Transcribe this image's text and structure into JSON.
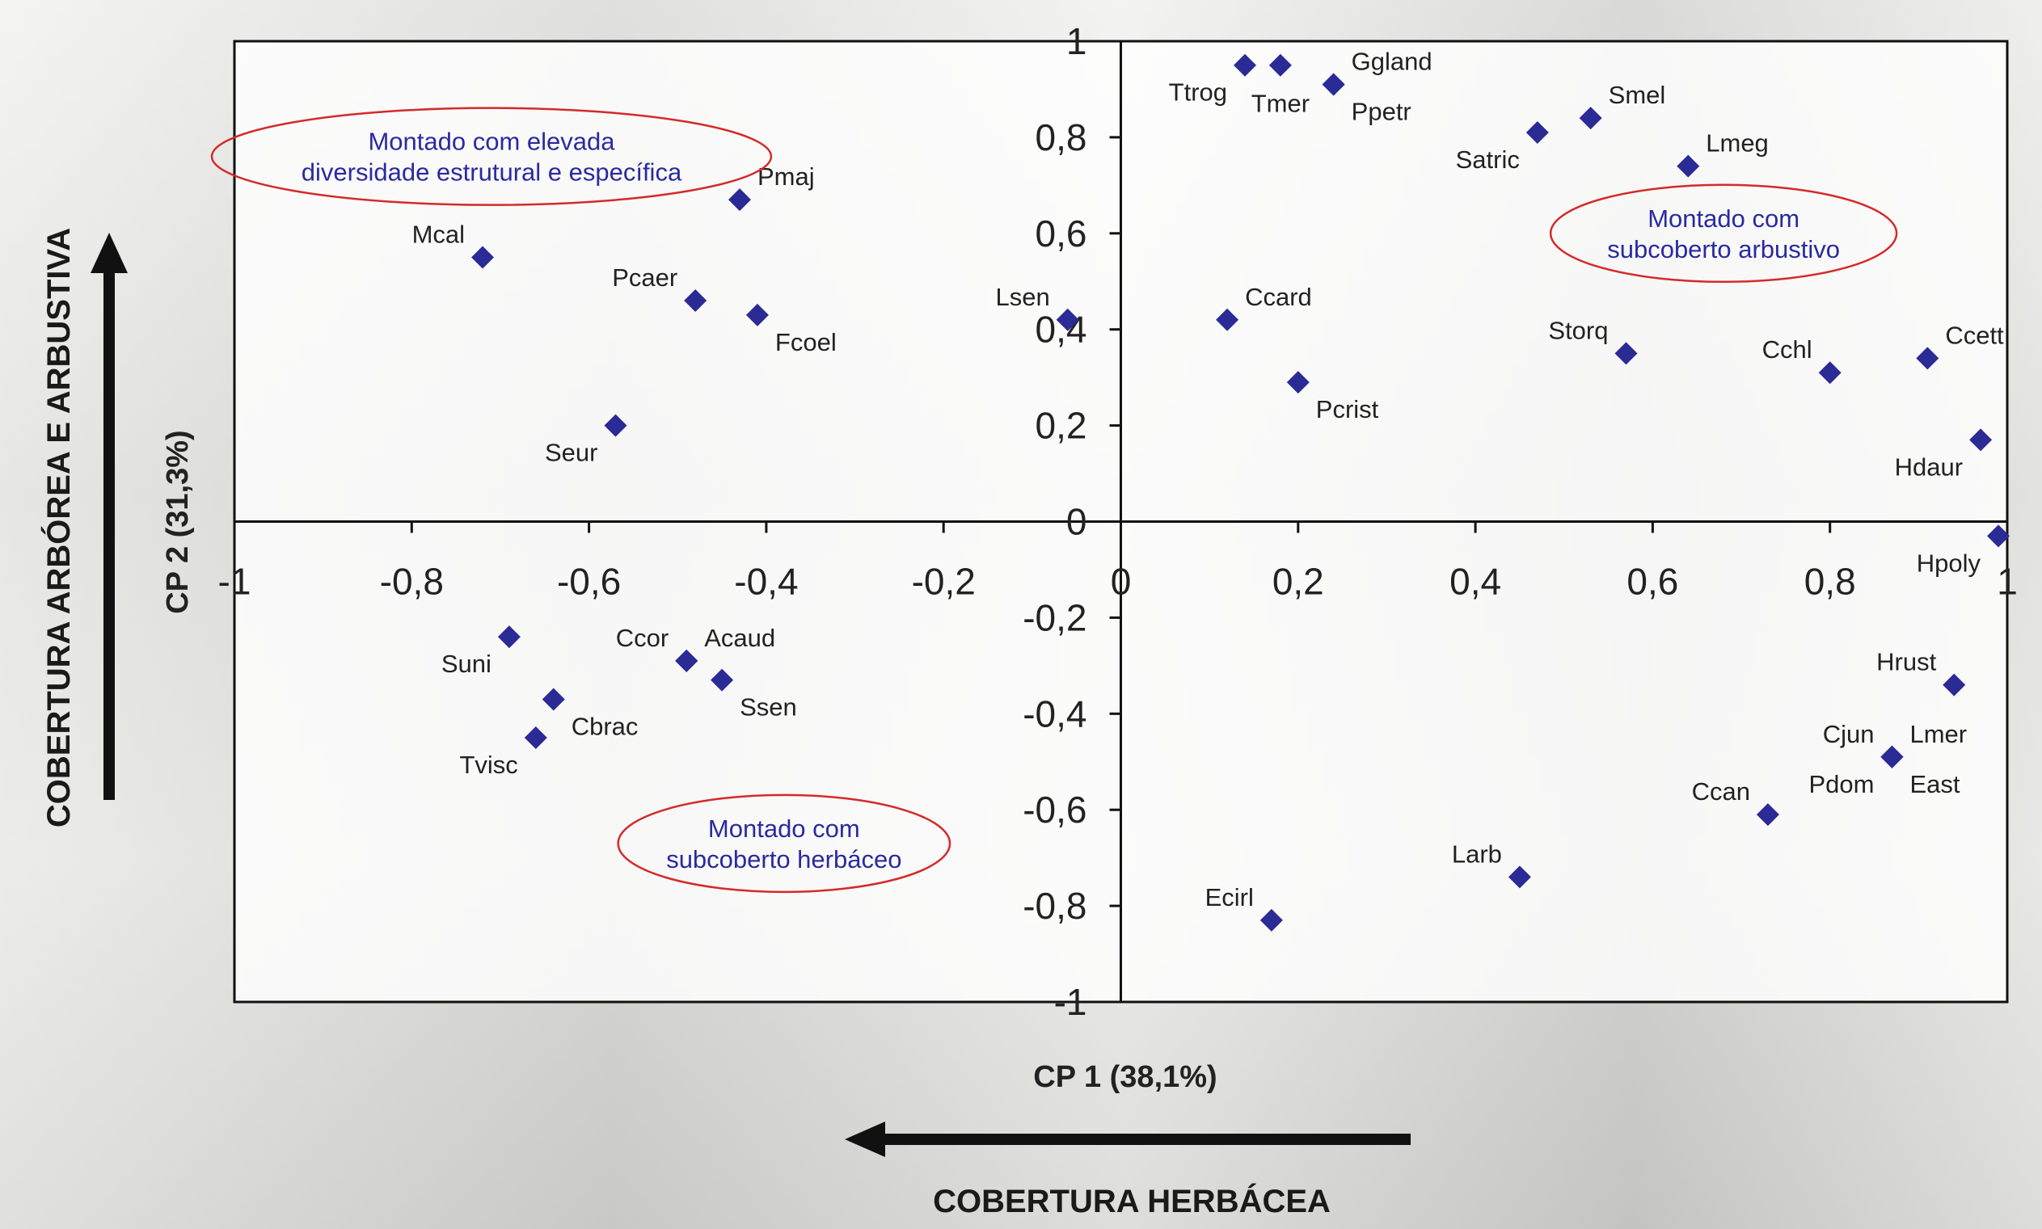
{
  "chart_data": {
    "type": "scatter",
    "xlabel": "CP 1 (38,1%)",
    "ylabel": "CP 2 (31,3%)",
    "xlim": [
      -1,
      1
    ],
    "ylim": [
      -1,
      1
    ],
    "x_ticks": [
      -1,
      -0.8,
      -0.6,
      -0.4,
      -0.2,
      0,
      0.2,
      0.4,
      0.6,
      0.8,
      1
    ],
    "x_tick_labels": [
      "-1",
      "-0,8",
      "-0,6",
      "-0,4",
      "-0,2",
      "0",
      "0,2",
      "0,4",
      "0,6",
      "0,8",
      "1"
    ],
    "y_ticks": [
      -1,
      -0.8,
      -0.6,
      -0.4,
      -0.2,
      0,
      0.2,
      0.4,
      0.6,
      0.8,
      1
    ],
    "y_tick_labels": [
      "-1",
      "-0,8",
      "-0,6",
      "-0,4",
      "-0,2",
      "0",
      "0,2",
      "0,4",
      "0,6",
      "0,8",
      "1"
    ],
    "grid": false,
    "marker_color": "#2b2b96",
    "points": [
      {
        "label": "Ttrog",
        "x": 0.14,
        "y": 0.95,
        "pos": "sw"
      },
      {
        "label": "Tmer",
        "x": 0.18,
        "y": 0.95,
        "pos": "s"
      },
      {
        "label": "Ggland",
        "x": 0.24,
        "y": 0.91,
        "pos": "ne"
      },
      {
        "label": "Ppetr",
        "x": 0.24,
        "y": 0.91,
        "pos": "se"
      },
      {
        "label": "Smel",
        "x": 0.53,
        "y": 0.84,
        "pos": "ne"
      },
      {
        "label": "Satric",
        "x": 0.47,
        "y": 0.81,
        "pos": "sw"
      },
      {
        "label": "Lmeg",
        "x": 0.64,
        "y": 0.74,
        "pos": "ne"
      },
      {
        "label": "Pmaj",
        "x": -0.43,
        "y": 0.67,
        "pos": "ne"
      },
      {
        "label": "Mcal",
        "x": -0.72,
        "y": 0.55,
        "pos": "nw"
      },
      {
        "label": "Pcaer",
        "x": -0.48,
        "y": 0.46,
        "pos": "nw"
      },
      {
        "label": "Fcoel",
        "x": -0.41,
        "y": 0.43,
        "pos": "se"
      },
      {
        "label": "Lsen",
        "x": -0.06,
        "y": 0.42,
        "pos": "nw"
      },
      {
        "label": "Ccard",
        "x": 0.12,
        "y": 0.42,
        "pos": "ne"
      },
      {
        "label": "Storq",
        "x": 0.57,
        "y": 0.35,
        "pos": "nw"
      },
      {
        "label": "Ccett",
        "x": 0.91,
        "y": 0.34,
        "pos": "ne"
      },
      {
        "label": "Cchl",
        "x": 0.8,
        "y": 0.31,
        "pos": "nw"
      },
      {
        "label": "Pcrist",
        "x": 0.2,
        "y": 0.29,
        "pos": "se"
      },
      {
        "label": "Seur",
        "x": -0.57,
        "y": 0.2,
        "pos": "sw"
      },
      {
        "label": "Hdaur",
        "x": 0.97,
        "y": 0.17,
        "pos": "sw"
      },
      {
        "label": "Hpoly",
        "x": 0.99,
        "y": -0.03,
        "pos": "sw"
      },
      {
        "label": "Suni",
        "x": -0.69,
        "y": -0.24,
        "pos": "sw"
      },
      {
        "label": "Ccor",
        "x": -0.49,
        "y": -0.29,
        "pos": "nw"
      },
      {
        "label": "Acaud",
        "x": -0.49,
        "y": -0.29,
        "pos": "ne"
      },
      {
        "label": "Ssen",
        "x": -0.45,
        "y": -0.33,
        "pos": "se"
      },
      {
        "label": "Hrust",
        "x": 0.94,
        "y": -0.34,
        "pos": "nw"
      },
      {
        "label": "Cbrac",
        "x": -0.64,
        "y": -0.37,
        "pos": "se"
      },
      {
        "label": "Tvisc",
        "x": -0.66,
        "y": -0.45,
        "pos": "sw"
      },
      {
        "label": "Cjun",
        "x": 0.87,
        "y": -0.49,
        "pos": "nw"
      },
      {
        "label": "Lmer",
        "x": 0.87,
        "y": -0.49,
        "pos": "ne"
      },
      {
        "label": "Pdom",
        "x": 0.87,
        "y": -0.49,
        "pos": "sw"
      },
      {
        "label": "East",
        "x": 0.87,
        "y": -0.49,
        "pos": "se"
      },
      {
        "label": "Ccan",
        "x": 0.73,
        "y": -0.61,
        "pos": "nw"
      },
      {
        "label": "Larb",
        "x": 0.45,
        "y": -0.74,
        "pos": "nw"
      },
      {
        "label": "Ecirl",
        "x": 0.17,
        "y": -0.83,
        "pos": "nw"
      }
    ],
    "annotations": [
      {
        "lines": [
          "Montado com elevada",
          "diversidade estrutural e específica"
        ],
        "cx": -0.71,
        "cy": 0.76
      },
      {
        "lines": [
          "Montado com",
          "subcoberto arbustivo"
        ],
        "cx": 0.68,
        "cy": 0.6
      },
      {
        "lines": [
          "Montado com",
          "subcoberto herbáceo"
        ],
        "cx": -0.38,
        "cy": -0.67
      }
    ],
    "side_titles": {
      "vertical": "COBERTURA ARBÓREA E ARBUSTIVA",
      "horizontal": "COBERTURA HERBÁCEA"
    }
  }
}
